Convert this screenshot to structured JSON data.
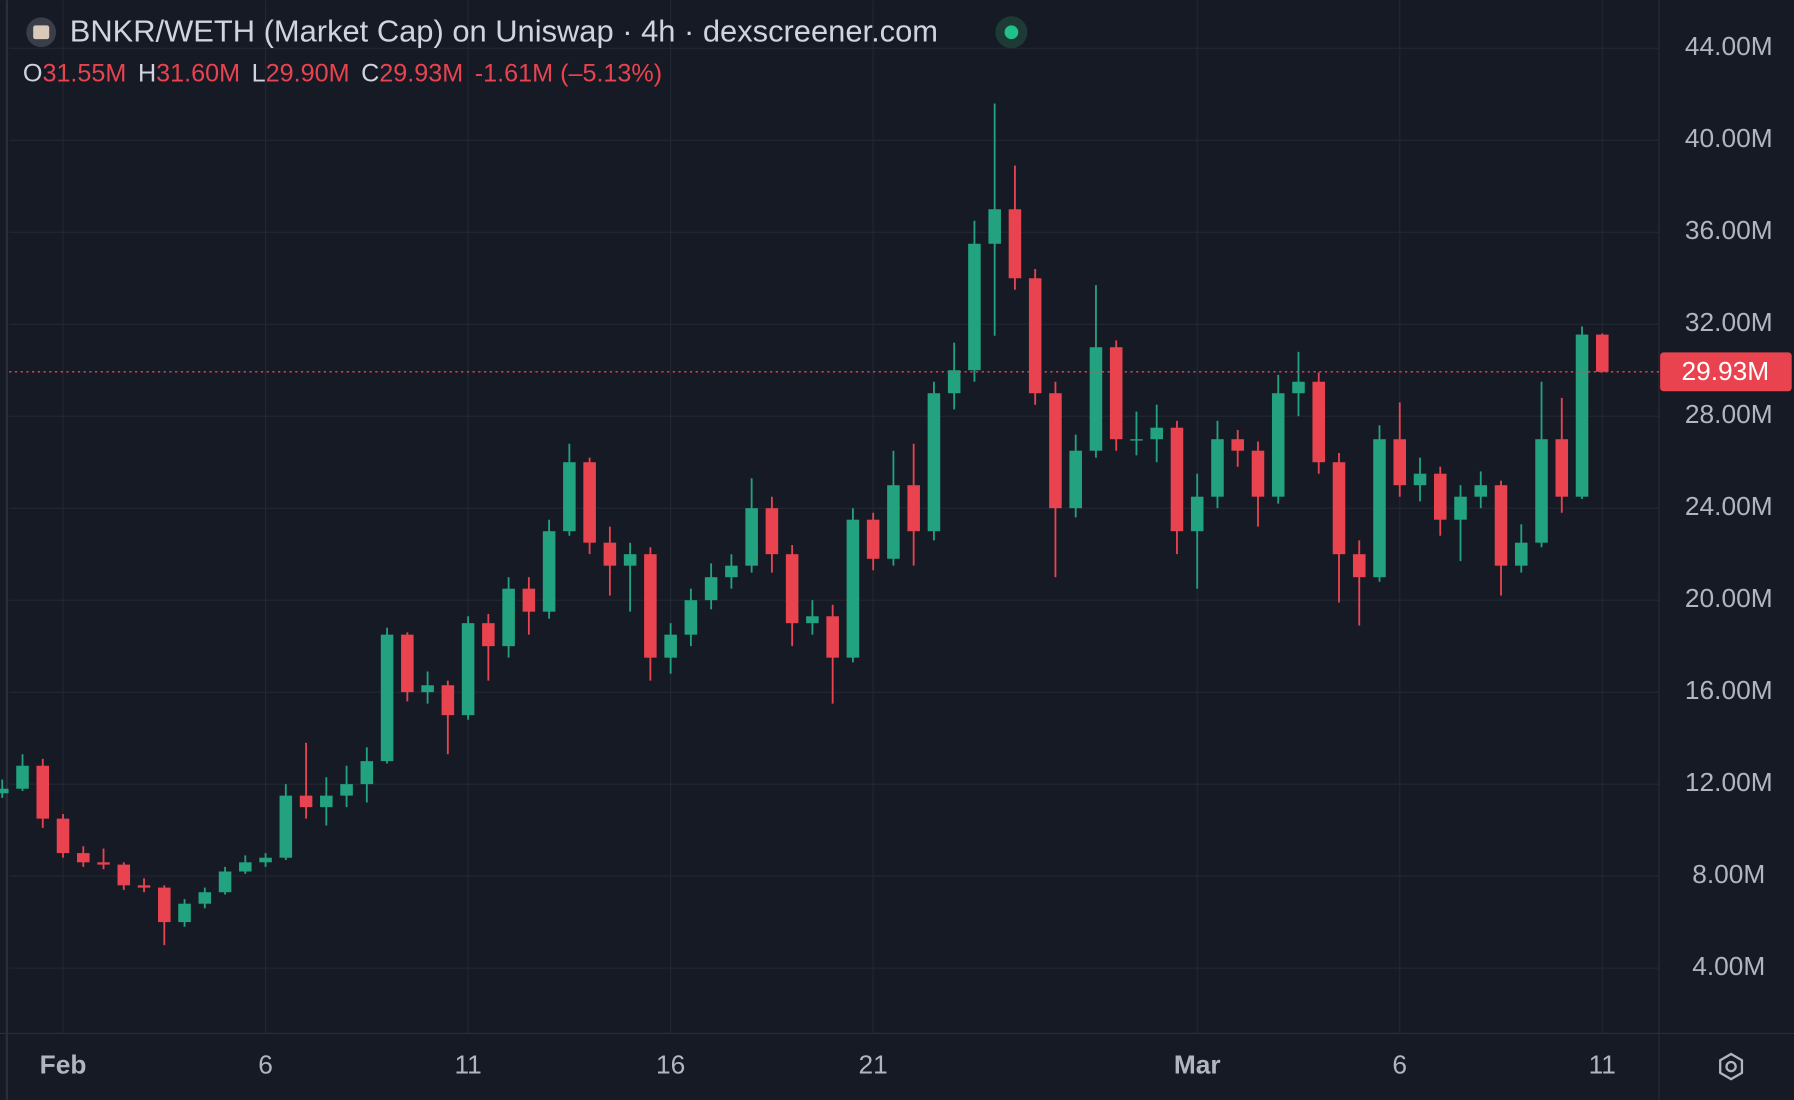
{
  "chart_data": {
    "type": "candlestick",
    "title": "BNKR/WETH (Market Cap) on Uniswap · 4h · dexscreener.com",
    "ohlc_legend": [
      {
        "key": "O",
        "value": "31.55M"
      },
      {
        "key": "H",
        "value": "31.60M"
      },
      {
        "key": "L",
        "value": "29.90M"
      },
      {
        "key": "C",
        "value": "29.93M"
      }
    ],
    "change": "-1.61M (–5.13%)",
    "x": [
      -0.5,
      0,
      0.5,
      1,
      1.5,
      2,
      2.5,
      3,
      3.5,
      4,
      4.5,
      5,
      5.5,
      6,
      6.5,
      7,
      7.5,
      8,
      8.5,
      9,
      9.5,
      10,
      10.5,
      11,
      11.5,
      12,
      12.5,
      13,
      13.5,
      14,
      14.5,
      15,
      15.5,
      16,
      16.5,
      17,
      17.5,
      18,
      18.5,
      19,
      19.5,
      20,
      20.5,
      21,
      21.5,
      22,
      22.5,
      23,
      23.5,
      24,
      24.5,
      25,
      25.5,
      26,
      26.5,
      27,
      27.5,
      28,
      28.5,
      29,
      29.5,
      30,
      30.5,
      31,
      31.5,
      32,
      32.5,
      33,
      33.5,
      34,
      34.5,
      35,
      35.5,
      36,
      36.5,
      37,
      37.5,
      38,
      38.5,
      39
    ],
    "open": [
      11.6,
      11.8,
      12.8,
      10.5,
      9,
      8.6,
      8.5,
      7.6,
      7.5,
      6,
      6.8,
      7.3,
      8.2,
      8.6,
      8.8,
      11.5,
      11,
      11.5,
      12,
      13,
      18.5,
      16,
      16.3,
      15,
      19,
      18,
      20.5,
      19.5,
      23,
      26,
      22.5,
      21.5,
      22,
      17.5,
      18.5,
      20,
      21,
      21.5,
      24,
      22,
      19,
      19.3,
      17.5,
      23.5,
      21.8,
      25,
      23,
      29,
      30,
      35.5,
      37,
      34,
      29,
      24,
      26.5,
      31,
      27,
      27,
      27.5,
      23,
      24.5,
      27,
      26.5,
      24.5,
      29,
      29.5,
      26,
      22,
      21,
      27,
      25,
      25.5,
      23.5,
      24.5,
      25,
      21.5,
      22.5,
      27,
      24.5,
      31.55
    ],
    "high": [
      12.2,
      13.3,
      13.1,
      10.7,
      9.3,
      9.2,
      8.6,
      7.9,
      7.6,
      7,
      7.5,
      8.4,
      8.9,
      9,
      12,
      13.8,
      12.3,
      12.8,
      13.6,
      18.8,
      18.6,
      16.9,
      16.5,
      19.3,
      19.4,
      21,
      21,
      23.5,
      26.8,
      26.2,
      23.2,
      22.5,
      22.3,
      19,
      20.5,
      21.6,
      22,
      25.3,
      24.5,
      22.4,
      20,
      19.8,
      24,
      23.8,
      26.5,
      26.8,
      29.5,
      31.2,
      36.5,
      41.6,
      38.9,
      34.4,
      29.5,
      27.2,
      33.7,
      31.3,
      28.2,
      28.5,
      27.8,
      25.5,
      27.8,
      27.4,
      26.9,
      29.8,
      30.8,
      29.9,
      26.4,
      22.6,
      27.6,
      28.6,
      26.2,
      25.8,
      25,
      25.6,
      25.2,
      23.3,
      29.5,
      28.8,
      31.9,
      31.6
    ],
    "low": [
      11.4,
      11.7,
      10.1,
      8.8,
      8.4,
      8.3,
      7.4,
      7.3,
      5,
      5.8,
      6.6,
      7.2,
      8.1,
      8.4,
      8.7,
      10.5,
      10.2,
      11,
      11.2,
      12.9,
      15.6,
      15.5,
      13.3,
      14.8,
      16.5,
      17.5,
      18.5,
      19.2,
      22.8,
      22,
      20.2,
      19.5,
      16.5,
      16.8,
      18,
      19.6,
      20.5,
      21.2,
      21.2,
      18,
      18.5,
      15.5,
      17.3,
      21.3,
      21.5,
      21.5,
      22.6,
      28.3,
      29.5,
      31.5,
      33.5,
      28.5,
      21,
      23.6,
      26.2,
      26.5,
      26.3,
      26,
      22,
      20.5,
      24,
      25.8,
      23.2,
      24.2,
      28,
      25.5,
      19.9,
      18.9,
      20.8,
      24.5,
      24.3,
      22.8,
      21.7,
      24,
      20.2,
      21.2,
      22.3,
      23.8,
      24.4,
      29.9
    ],
    "close": [
      11.8,
      12.8,
      10.5,
      9,
      8.6,
      8.5,
      7.6,
      7.5,
      6,
      6.8,
      7.3,
      8.2,
      8.6,
      8.8,
      11.5,
      11,
      11.5,
      12,
      13,
      18.5,
      16,
      16.3,
      15,
      19,
      18,
      20.5,
      19.5,
      23,
      26,
      22.5,
      21.5,
      22,
      17.5,
      18.5,
      20,
      21,
      21.5,
      24,
      22,
      19,
      19.3,
      17.5,
      23.5,
      21.8,
      25,
      23,
      29,
      30,
      35.5,
      37,
      34,
      29,
      24,
      26.5,
      31,
      27,
      27,
      27.5,
      23,
      24.5,
      27,
      26.5,
      24.5,
      29,
      29.5,
      26,
      22,
      21,
      27,
      25,
      25.5,
      23.5,
      24.5,
      25,
      21.5,
      22.5,
      27,
      24.5,
      31.55,
      29.93
    ],
    "colors": {
      "up": "#22a27f",
      "down": "#e8434f"
    },
    "last_price": {
      "value": 29.93,
      "label": "29.93M"
    },
    "xlim": [
      -0.33,
      40.4
    ],
    "ylim": [
      1.16,
      46.09
    ],
    "xticks": [
      {
        "value": 1,
        "label": "Feb"
      },
      6,
      11,
      16,
      21,
      {
        "value": 29,
        "label": "Mar"
      },
      {
        "value": 34,
        "label": "6"
      },
      {
        "value": 39,
        "label": "11"
      }
    ],
    "yticks": [
      {
        "value": 4,
        "label": "4.00M"
      },
      {
        "value": 8,
        "label": "8.00M"
      },
      {
        "value": 12,
        "label": "12.00M"
      },
      {
        "value": 16,
        "label": "16.00M"
      },
      {
        "value": 20,
        "label": "20.00M"
      },
      {
        "value": 24,
        "label": "24.00M"
      },
      {
        "value": 28,
        "label": "28.00M"
      },
      {
        "value": 32,
        "label": "32.00M"
      },
      {
        "value": 36,
        "label": "36.00M"
      },
      {
        "value": 40,
        "label": "40.00M"
      },
      {
        "value": 44,
        "label": "44.00M"
      }
    ],
    "grid": true
  }
}
